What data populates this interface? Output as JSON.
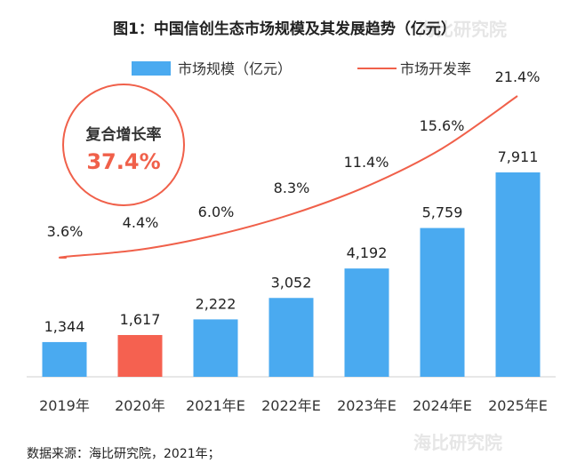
{
  "chart_data": {
    "type": "bar",
    "title": "图1：中国信创生态市场规模及其发展趋势（亿元）",
    "categories": [
      "2019年",
      "2020年",
      "2021年E",
      "2022年E",
      "2023年E",
      "2024年E",
      "2025年E"
    ],
    "series": [
      {
        "name": "市场规模（亿元）",
        "type": "bar",
        "values": [
          1344,
          1617,
          2222,
          3052,
          4192,
          5759,
          7911
        ],
        "value_labels": [
          "1,344",
          "1,617",
          "2,222",
          "3,052",
          "4,192",
          "5,759",
          "7,911"
        ],
        "color": "#4aaaf0",
        "highlight_index": 1,
        "highlight_color": "#f56150"
      },
      {
        "name": "市场开发率",
        "type": "line",
        "values": [
          3.6,
          4.4,
          6.0,
          8.3,
          11.4,
          15.6,
          21.4
        ],
        "value_labels": [
          "3.6%",
          "4.4%",
          "6.0%",
          "8.3%",
          "11.4%",
          "15.6%",
          "21.4%"
        ],
        "color": "#f0604a"
      }
    ],
    "legend_position": "top",
    "grid": false
  },
  "annotation": {
    "label": "复合增长率",
    "value": "37.4%"
  },
  "source": "数据来源：海比研究院，2021年；",
  "watermark": "海比研究院"
}
